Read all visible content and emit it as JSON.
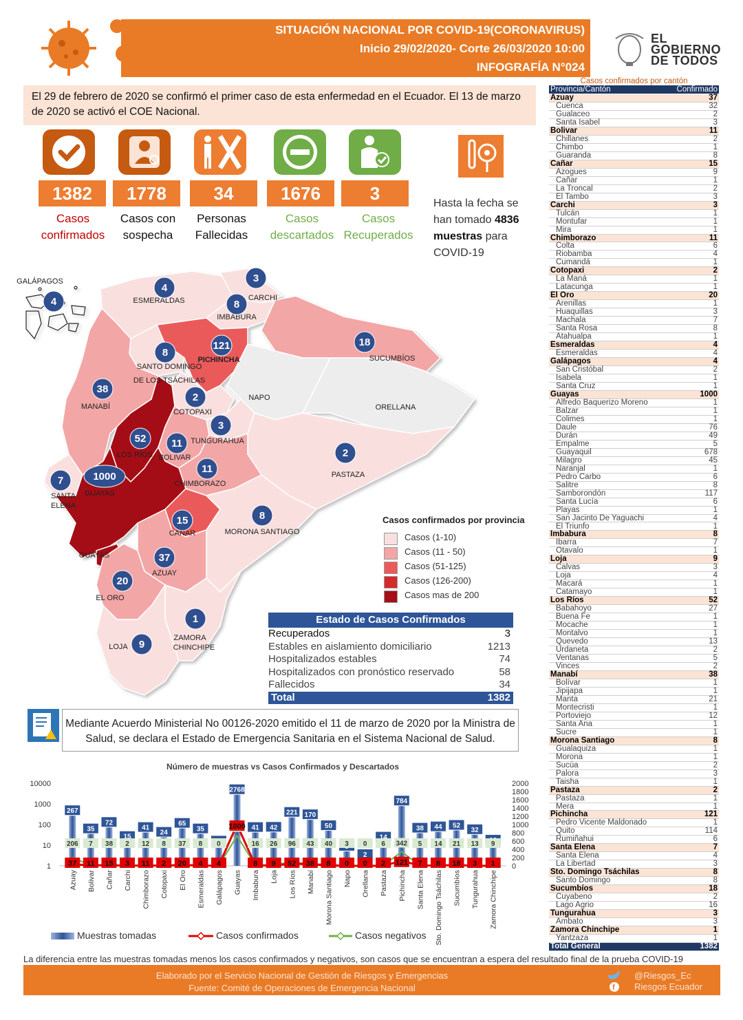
{
  "header": {
    "line1": "SITUACIÓN NACIONAL POR  COVID-19(CORONAVIRUS)",
    "line2": "Inicio 29/02/2020- Corte 26/03/2020 10:00",
    "line3": "INFOGRAFÍA N°024"
  },
  "gov_logo": {
    "l1": "EL",
    "l2": "GOBIERNO",
    "l3": "DE TODOS"
  },
  "intro": "El 29 de febrero de 2020 se confirmó el primer caso de esta enfermedad en el Ecuador. El 13 de marzo de 2020 se activó el COE Nacional.",
  "stats": [
    {
      "value": "1382",
      "label1": "Casos",
      "label2": "confirmados",
      "color": "#c00000",
      "icon": "check-icon",
      "icon_bg": "#c55a11"
    },
    {
      "value": "1778",
      "label1": "Casos con",
      "label2": "sospecha",
      "color": "#111111",
      "icon": "doctor-icon",
      "icon_bg": "#c55a11"
    },
    {
      "value": "34",
      "label1": "Personas",
      "label2": "Fallecidas",
      "color": "#111111",
      "icon": "deceased-icon",
      "icon_bg": "#ed7d31"
    },
    {
      "value": "1676",
      "label1": "Casos",
      "label2": "descartados",
      "color": "#70ad47",
      "icon": "minus-icon",
      "icon_bg": "#70ad47"
    },
    {
      "value": "3",
      "label1": "Casos",
      "label2": "Recuperados",
      "color": "#70ad47",
      "icon": "recovered-icon",
      "icon_bg": "#70ad47"
    }
  ],
  "samples": {
    "pre": "Hasta la fecha se han tomado",
    "count": "4836",
    "word": "muestras",
    "post": "para COVID-19"
  },
  "map": {
    "provinces": [
      {
        "name": "GALÁPAGOS",
        "value": "4"
      },
      {
        "name": "ESMERALDAS",
        "value": "4"
      },
      {
        "name": "CARCHI",
        "value": "3"
      },
      {
        "name": "IMBABURA",
        "value": "8"
      },
      {
        "name": "PICHINCHA",
        "value": "121"
      },
      {
        "name": "SUCUMBÍOS",
        "value": "18"
      },
      {
        "name": "SANTO DOMINGO",
        "value": "8"
      },
      {
        "name": "DE LOS TSÁCHILAS",
        "value": ""
      },
      {
        "name": "MANABÍ",
        "value": "38"
      },
      {
        "name": "COTOPAXI",
        "value": "2"
      },
      {
        "name": "NAPO",
        "value": ""
      },
      {
        "name": "ORELLANA",
        "value": ""
      },
      {
        "name": "TUNGURAHUA",
        "value": "3"
      },
      {
        "name": "LOS RÍOS",
        "value": "52"
      },
      {
        "name": "BOLIVAR",
        "value": "11"
      },
      {
        "name": "PASTAZA",
        "value": "2"
      },
      {
        "name": "SANTA",
        "value": "7"
      },
      {
        "name": "ELENA",
        "value": ""
      },
      {
        "name": "GUAYAS",
        "value": "1000"
      },
      {
        "name": "CHIMBORAZO",
        "value": "11"
      },
      {
        "name": "CAÑAR",
        "value": "15"
      },
      {
        "name": "MORONA SANTIAGO",
        "value": "8"
      },
      {
        "name": "GUAYAS",
        "value": ""
      },
      {
        "name": "AZUAY",
        "value": "37"
      },
      {
        "name": "EL ORO",
        "value": "20"
      },
      {
        "name": "ZAMORA",
        "value": "1"
      },
      {
        "name": "CHINCHIPE",
        "value": ""
      },
      {
        "name": "LOJA",
        "value": "9"
      }
    ],
    "colors": {
      "c1": "#f9e0df",
      "c2": "#f3a6a6",
      "c3": "#eb5a5a",
      "c4": "#d32a2a",
      "c5": "#a50f15",
      "none": "#ededed"
    }
  },
  "legend": {
    "title": "Casos confirmados por provincia",
    "items": [
      "Casos (1-10)",
      "Casos (11 - 50)",
      "Casos (51-125)",
      "Casos (126-200)",
      "Casos mas de 200"
    ]
  },
  "estado": {
    "title": "Estado de Casos Confirmados",
    "rows": [
      {
        "label": "Recuperados",
        "value": "3"
      },
      {
        "label": "Estables en aislamiento domiciliario",
        "value": "1213"
      },
      {
        "label": "Hospitalizados estables",
        "value": "74"
      },
      {
        "label": "Hospitalizados con pronóstico reservado",
        "value": "58"
      },
      {
        "label": "Fallecidos",
        "value": "34"
      }
    ],
    "total_label": "Total",
    "total_value": "1382"
  },
  "decree": "Mediante Acuerdo Ministerial No 00126-2020 emitido el 11 de marzo de 2020 por la Ministra de Salud, se declara el Estado de Emergencia Sanitaria en el Sistema Nacional de Salud.",
  "chart_data": {
    "type": "bar",
    "title": "Número de muestras vs Casos Confirmados y Descartados",
    "categories": [
      "Azuay",
      "Bolivar",
      "Cañar",
      "Carchi",
      "Chimborazo",
      "Cotopaxi",
      "El Oro",
      "Esmeraldas",
      "Galápagos",
      "Guayas",
      "Imbabura",
      "Loja",
      "Los Ríos",
      "Manabí",
      "Morona Santiago",
      "Napo",
      "Orellana",
      "Pastaza",
      "Pichincha",
      "Santa Elena",
      "Sto. Domingo Tsáchilas",
      "Sucumbíos",
      "Tungurahua",
      "Zamora Chinchipe"
    ],
    "series": [
      {
        "name": "Muestras tomadas",
        "type": "bar",
        "values": [
          267,
          35,
          72,
          15,
          41,
          24,
          65,
          35,
          9,
          2768,
          41,
          42,
          221,
          170,
          50,
          5,
          2,
          14,
          784,
          38,
          44,
          52,
          32,
          10
        ]
      },
      {
        "name": "Casos confirmados",
        "type": "line",
        "values": [
          37,
          11,
          15,
          3,
          11,
          2,
          20,
          4,
          4,
          1000,
          8,
          9,
          52,
          38,
          8,
          0,
          0,
          2,
          121,
          7,
          8,
          18,
          3,
          1
        ]
      },
      {
        "name": "Casos negativos",
        "type": "line",
        "values": [
          206,
          7,
          38,
          2,
          12,
          8,
          37,
          8,
          0,
          724,
          16,
          26,
          96,
          43,
          40,
          3,
          0,
          6,
          342,
          5,
          14,
          21,
          13,
          9
        ]
      }
    ],
    "y_left_ticks": [
      "10000",
      "1000",
      "100",
      "10",
      "1"
    ],
    "y_right_ticks": [
      "2000",
      "1800",
      "1600",
      "1400",
      "1200",
      "1000",
      "800",
      "600",
      "400",
      "200",
      "0"
    ],
    "ylim_left": [
      1,
      10000
    ],
    "scale_left": "log",
    "ylim_right": [
      0,
      2000
    ],
    "legend_position": "bottom",
    "colors": {
      "bars": "#2e5597",
      "confirmed": "#e00000",
      "negatives": "#70ad47"
    }
  },
  "cantones": {
    "title": "Casos confirmados por cantón",
    "col1": "Provincia/Cantón",
    "col2": "Confirmado",
    "rows": [
      [
        "p",
        "Azuay",
        "37"
      ],
      [
        "c",
        "Cuenca",
        "32"
      ],
      [
        "c",
        "Gualaceo",
        "2"
      ],
      [
        "c",
        "Santa Isabel",
        "3"
      ],
      [
        "p",
        "Bolivar",
        "11"
      ],
      [
        "c",
        "Chillanes",
        "2"
      ],
      [
        "c",
        "Chimbo",
        "1"
      ],
      [
        "c",
        "Guaranda",
        "8"
      ],
      [
        "p",
        "Cañar",
        "15"
      ],
      [
        "c",
        "Azogues",
        "9"
      ],
      [
        "c",
        "Cañar",
        "1"
      ],
      [
        "c",
        "La Troncal",
        "2"
      ],
      [
        "c",
        "El Tambo",
        "3"
      ],
      [
        "p",
        "Carchi",
        "3"
      ],
      [
        "c",
        "Tulcán",
        "1"
      ],
      [
        "c",
        "Montufar",
        "1"
      ],
      [
        "c",
        "Mira",
        "1"
      ],
      [
        "p",
        "Chimborazo",
        "11"
      ],
      [
        "c",
        "Colta",
        "6"
      ],
      [
        "c",
        "Riobamba",
        "4"
      ],
      [
        "c",
        "Cumandá",
        "1"
      ],
      [
        "p",
        "Cotopaxi",
        "2"
      ],
      [
        "c",
        "La Maná",
        "1"
      ],
      [
        "c",
        "Latacunga",
        "1"
      ],
      [
        "p",
        "El Oro",
        "20"
      ],
      [
        "c",
        "Arenillas",
        "1"
      ],
      [
        "c",
        "Huaquillas",
        "3"
      ],
      [
        "c",
        "Machala",
        "7"
      ],
      [
        "c",
        "Santa Rosa",
        "8"
      ],
      [
        "c",
        "Atahualpa",
        "1"
      ],
      [
        "p",
        "Esmeraldas",
        "4"
      ],
      [
        "c",
        "Esmeraldas",
        "4"
      ],
      [
        "p",
        "Galápagos",
        "4"
      ],
      [
        "c",
        "San Cristóbal",
        "2"
      ],
      [
        "c",
        "Isabela",
        "1"
      ],
      [
        "c",
        "Santa Cruz",
        "1"
      ],
      [
        "p",
        "Guayas",
        "1000"
      ],
      [
        "c",
        "Alfredo Baquerizo Moreno",
        "1"
      ],
      [
        "c",
        "Balzar",
        "1"
      ],
      [
        "c",
        "Colimes",
        "1"
      ],
      [
        "c",
        "Daule",
        "76"
      ],
      [
        "c",
        "Durán",
        "49"
      ],
      [
        "c",
        "Empalme",
        "5"
      ],
      [
        "c",
        "Guayaquil",
        "678"
      ],
      [
        "c",
        "Milagro",
        "45"
      ],
      [
        "c",
        "Naranjal",
        "1"
      ],
      [
        "c",
        "Pedro Carbo",
        "6"
      ],
      [
        "c",
        "Salitre",
        "8"
      ],
      [
        "c",
        "Samborondón",
        "117"
      ],
      [
        "c",
        "Santa Lucía",
        "6"
      ],
      [
        "c",
        "Playas",
        "1"
      ],
      [
        "c",
        "San Jacinto De Yaguachi",
        "4"
      ],
      [
        "c",
        "El Triunfo",
        "1"
      ],
      [
        "p",
        "Imbabura",
        "8"
      ],
      [
        "c",
        "Ibarra",
        "7"
      ],
      [
        "c",
        "Otavalo",
        "1"
      ],
      [
        "p",
        "Loja",
        "9"
      ],
      [
        "c",
        "Calvas",
        "3"
      ],
      [
        "c",
        "Loja",
        "4"
      ],
      [
        "c",
        "Macará",
        "1"
      ],
      [
        "c",
        "Catamayo",
        "1"
      ],
      [
        "p",
        "Los Ríos",
        "52"
      ],
      [
        "c",
        "Babahoyo",
        "27"
      ],
      [
        "c",
        "Buena Fe",
        "1"
      ],
      [
        "c",
        "Mocache",
        "1"
      ],
      [
        "c",
        "Montalvo",
        "1"
      ],
      [
        "c",
        "Quevedo",
        "13"
      ],
      [
        "c",
        "Urdaneta",
        "2"
      ],
      [
        "c",
        "Ventanas",
        "5"
      ],
      [
        "c",
        "Vinces",
        "2"
      ],
      [
        "p",
        "Manabí",
        "38"
      ],
      [
        "c",
        "Bolívar",
        "1"
      ],
      [
        "c",
        "Jipijapa",
        "1"
      ],
      [
        "c",
        "Manta",
        "21"
      ],
      [
        "c",
        "Montecristi",
        "1"
      ],
      [
        "c",
        "Portoviejo",
        "12"
      ],
      [
        "c",
        "Santa Ana",
        "1"
      ],
      [
        "c",
        "Sucre",
        "1"
      ],
      [
        "p",
        "Morona Santiago",
        "8"
      ],
      [
        "c",
        "Gualaquiza",
        "1"
      ],
      [
        "c",
        "Morona",
        "1"
      ],
      [
        "c",
        "Sucúa",
        "2"
      ],
      [
        "c",
        "Palora",
        "3"
      ],
      [
        "c",
        "Taisha",
        "1"
      ],
      [
        "p",
        "Pastaza",
        "2"
      ],
      [
        "c",
        "Pastaza",
        "1"
      ],
      [
        "c",
        "Mera",
        "1"
      ],
      [
        "p",
        "Pichincha",
        "121"
      ],
      [
        "c",
        "Pedro Vicente Maldonado",
        "1"
      ],
      [
        "c",
        "Quito",
        "114"
      ],
      [
        "c",
        "Rumiñahui",
        "6"
      ],
      [
        "p",
        "Santa Elena",
        "7"
      ],
      [
        "c",
        "Santa Elena",
        "4"
      ],
      [
        "c",
        "La Libertad",
        "3"
      ],
      [
        "p",
        "Sto. Domingo Tsáchilas",
        "8"
      ],
      [
        "c",
        "Santo Domingo",
        "8"
      ],
      [
        "p",
        "Sucumbíos",
        "18"
      ],
      [
        "c",
        "Cuyabeno",
        "2"
      ],
      [
        "c",
        "Lago Agrio",
        "16"
      ],
      [
        "p",
        "Tungurahua",
        "3"
      ],
      [
        "c",
        "Ambato",
        "3"
      ],
      [
        "p",
        "Zamora Chinchipe",
        "1"
      ],
      [
        "c",
        "Yantzaza",
        "1"
      ],
      [
        "t",
        "Total General",
        "1382"
      ]
    ]
  },
  "note": "La diferencia entre las muestras tomadas menos los casos confirmados y negativos, son casos que se encuentran a espera del resultado final de la prueba COVID-19",
  "footer": {
    "line1": "Elaborado por el Servicio Nacional de Gestión de Riesgos y Emergencias",
    "line2": "Fuente: Comité de Operaciones de Emergencia Nacional",
    "twitter": "@Riesgos_Ec",
    "facebook": "Riesgos Ecuador"
  }
}
